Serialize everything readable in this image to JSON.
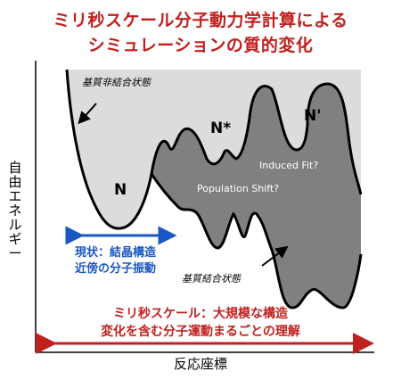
{
  "title": {
    "line1": "ミリ秒スケール分子動力学計算による",
    "line2": "シミュレーションの質的変化"
  },
  "axes": {
    "ylabel": "自由エネルギー",
    "xlabel": "反応座標"
  },
  "labels": {
    "unbound_state": "基質非結合状態",
    "bound_state": "基質結合状態",
    "n": "N",
    "n_star": "N*",
    "n_prime": "N'",
    "induced_fit": "Induced Fit?",
    "population_shift": "Population Shift?"
  },
  "current_status": {
    "line1": "現状：結晶構造",
    "line2": "近傍の分子振動"
  },
  "millisecond_scale": {
    "line1": "ミリ秒スケール：大規模な構造",
    "line2": "変化を含む分子運動まるごとの理解"
  },
  "colors": {
    "title_red": "#c0201e",
    "status_blue": "#1a56c4",
    "unbound_fill": "#dcdcdc",
    "bound_fill": "#808080"
  }
}
